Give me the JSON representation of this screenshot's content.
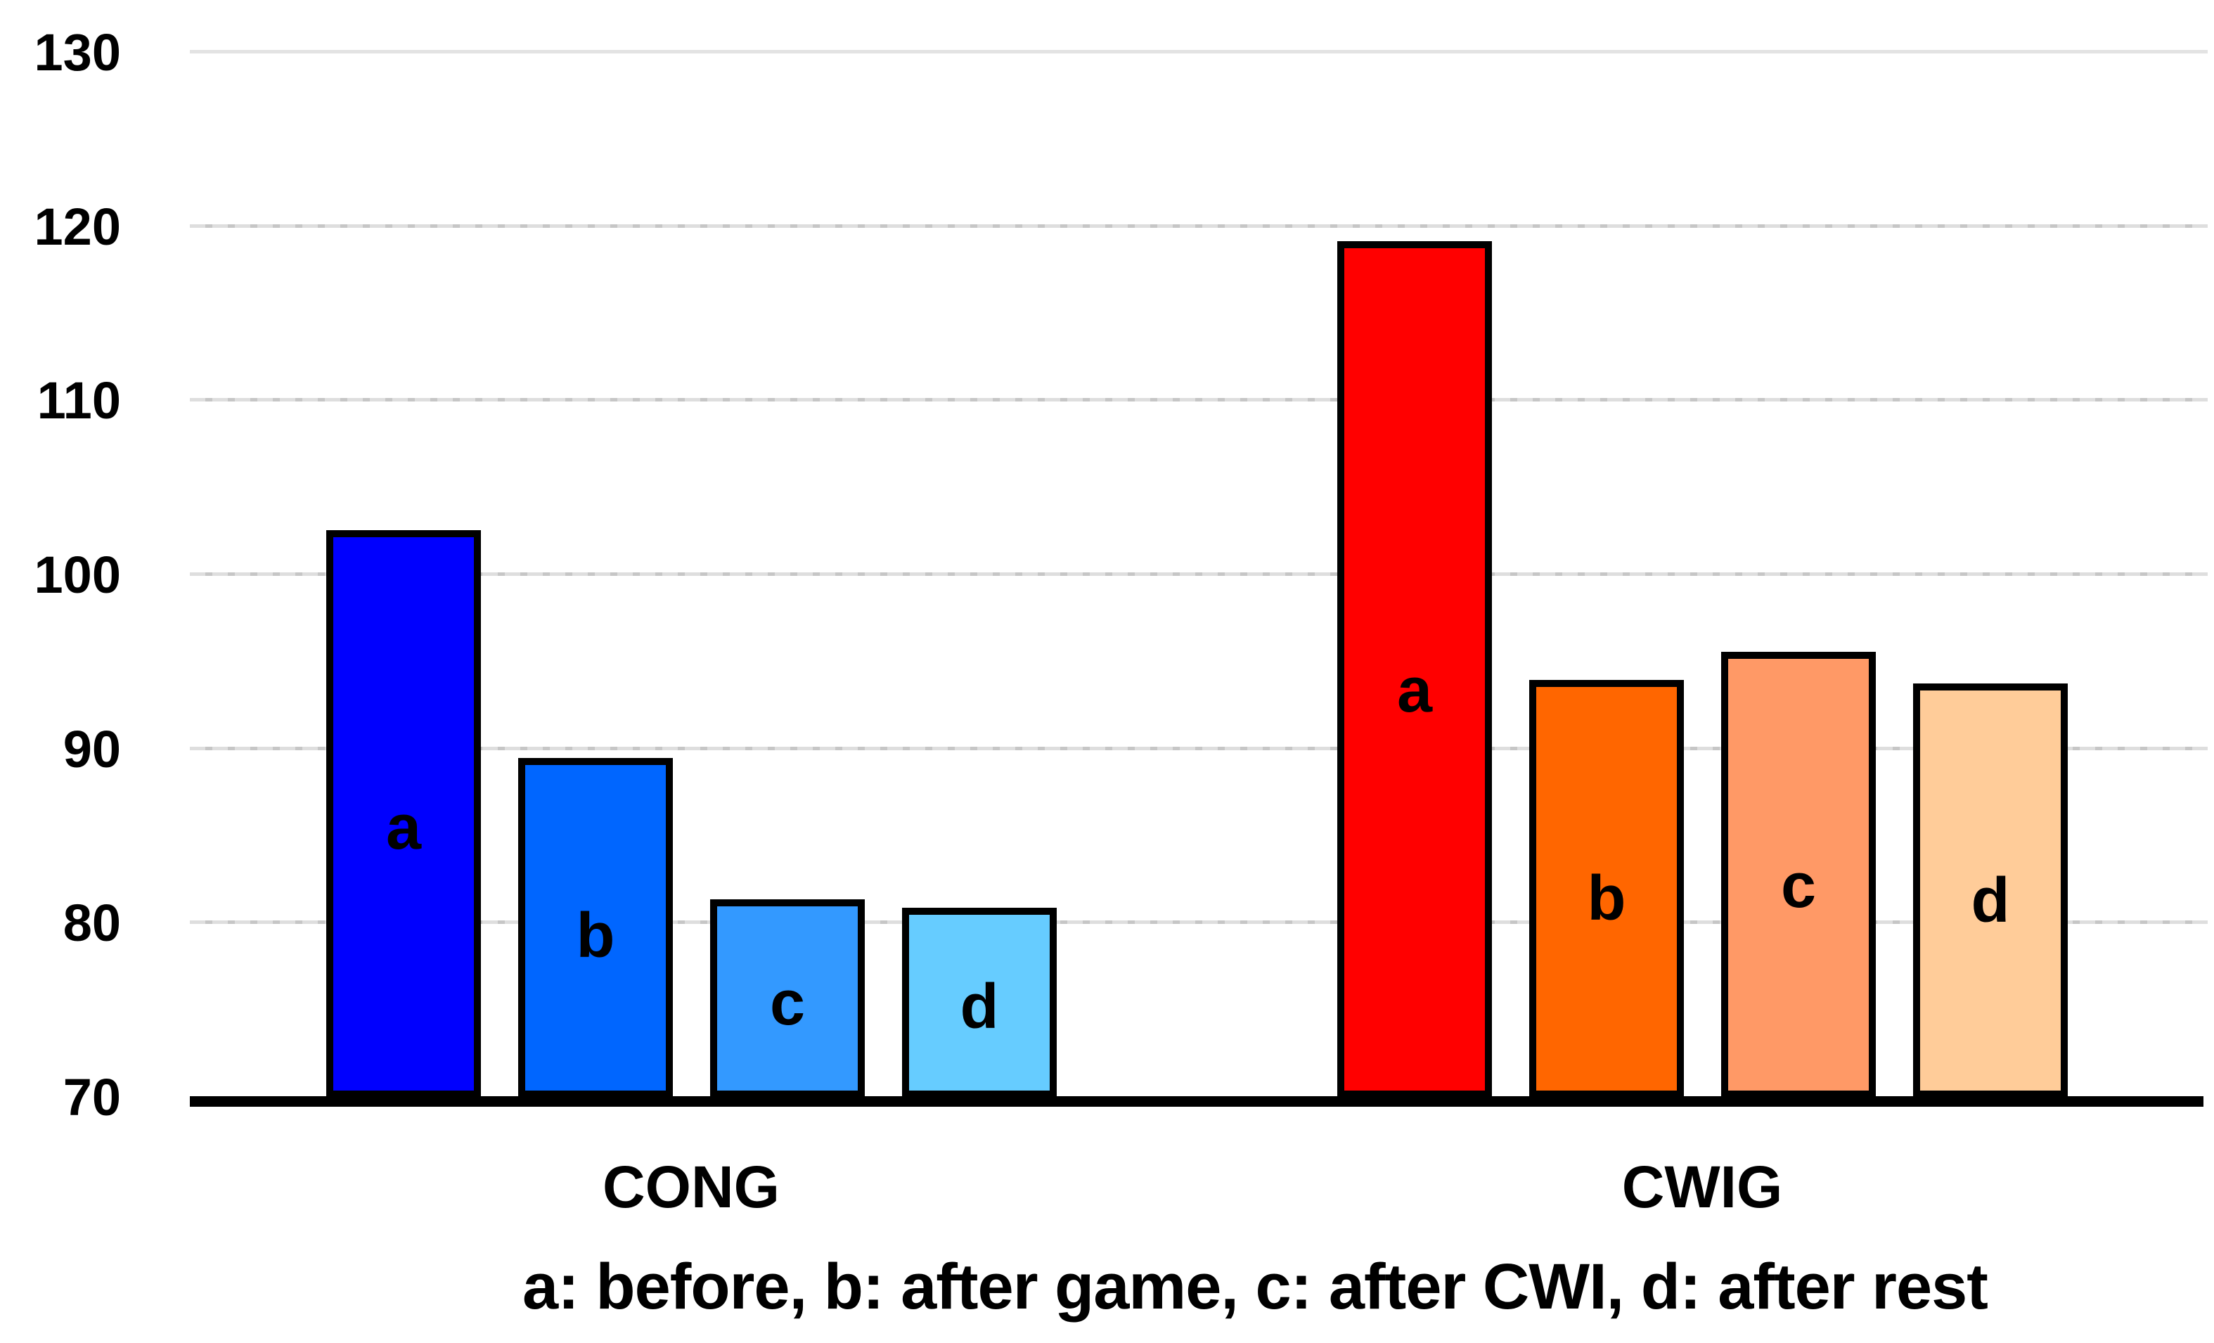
{
  "chart_data": {
    "type": "bar",
    "title": "",
    "xlabel": "",
    "ylabel": "",
    "ylim": [
      70,
      130
    ],
    "yticks": [
      70,
      80,
      90,
      100,
      110,
      120,
      130
    ],
    "grid": "horizontal",
    "legend_position": "bottom-caption",
    "bar_border_color": "#000000",
    "gridline_color": "#dedede",
    "axis_line_color": "#000000",
    "groups": [
      "CONG",
      "CWIG"
    ],
    "bar_keys": [
      "a",
      "b",
      "c",
      "d"
    ],
    "series": [
      {
        "group": "CONG",
        "bars": [
          {
            "label": "a",
            "condition": "before",
            "value": 102.5,
            "color": "#0000fe"
          },
          {
            "label": "b",
            "condition": "after game",
            "value": 89.4,
            "color": "#0066ff"
          },
          {
            "label": "c",
            "condition": "after CWI",
            "value": 81.3,
            "color": "#3399ff"
          },
          {
            "label": "d",
            "condition": "after rest",
            "value": 80.8,
            "color": "#66ccff"
          }
        ]
      },
      {
        "group": "CWIG",
        "bars": [
          {
            "label": "a",
            "condition": "before",
            "value": 119.1,
            "color": "#ff0000"
          },
          {
            "label": "b",
            "condition": "after game",
            "value": 93.9,
            "color": "#ff6600"
          },
          {
            "label": "c",
            "condition": "after CWI",
            "value": 95.5,
            "color": "#ff9966"
          },
          {
            "label": "d",
            "condition": "after rest",
            "value": 93.7,
            "color": "#ffcc99"
          }
        ]
      }
    ],
    "legend_caption": "a: before, b: after game, c: after CWI, d: after rest"
  },
  "axis": {
    "tick_labels": [
      "130",
      "120",
      "110",
      "100",
      "90",
      "80",
      "70"
    ]
  }
}
